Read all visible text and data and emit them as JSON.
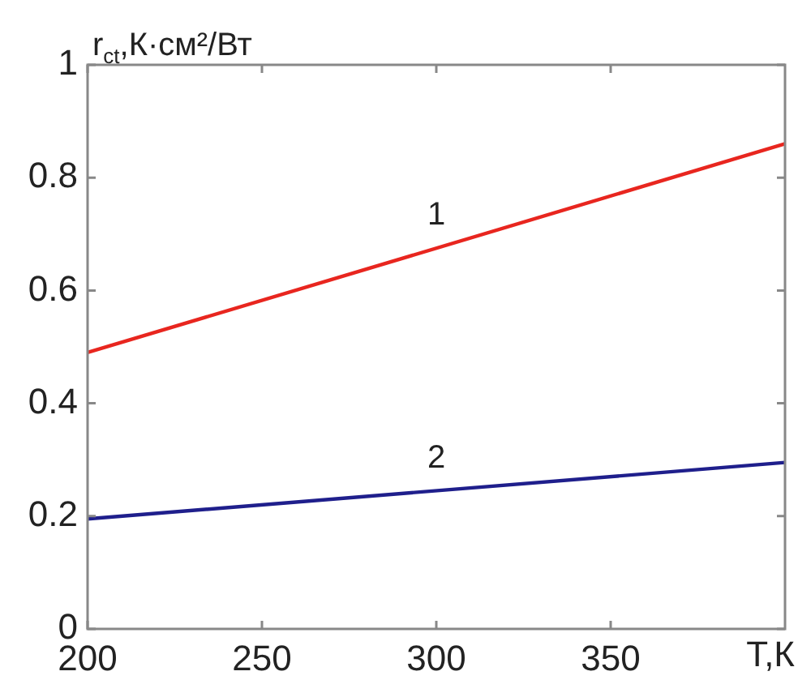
{
  "chart_data": {
    "type": "line",
    "xlabel": "Т,К",
    "ylabel": "r$_{ct}$,К·см²/Вт",
    "series": [
      {
        "name": "1",
        "color": "#e8261f",
        "values": [
          0.49,
          0.86
        ]
      },
      {
        "name": "2",
        "color": "#1f1f8c",
        "values": [
          0.195,
          0.295
        ]
      }
    ],
    "x": [
      200,
      400
    ],
    "xlim": [
      200,
      400
    ],
    "xticks": [
      200,
      250,
      300,
      350
    ],
    "ylim": [
      0,
      1
    ],
    "yticks": [
      0,
      0.2,
      0.4,
      0.6,
      0.8,
      1
    ],
    "grid": false,
    "legend": false,
    "marker": "none",
    "line_style": "solid"
  }
}
